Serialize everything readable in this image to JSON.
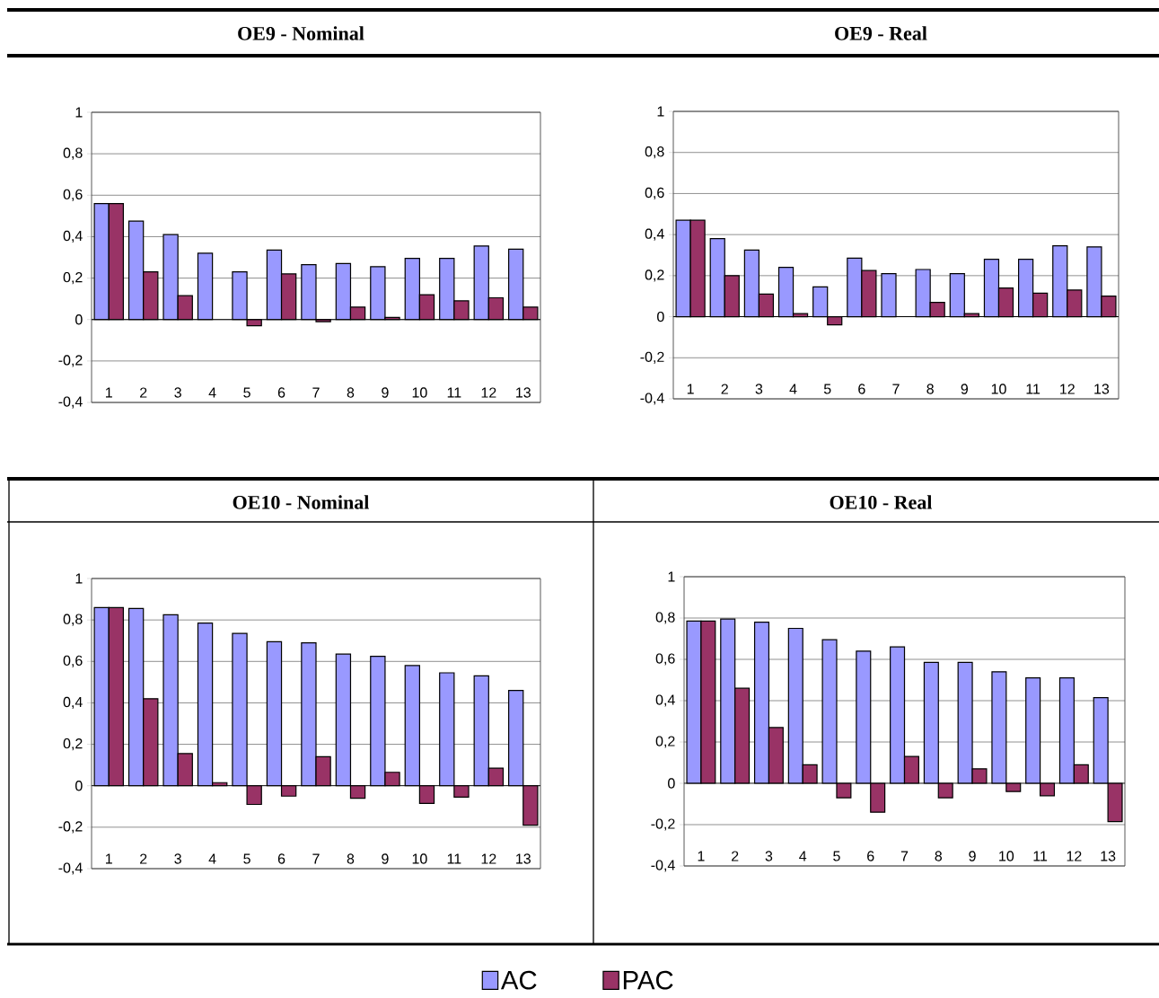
{
  "chart_data": [
    {
      "type": "bar",
      "title": "OE9 - Nominal",
      "categories": [
        "1",
        "2",
        "3",
        "4",
        "5",
        "6",
        "7",
        "8",
        "9",
        "10",
        "11",
        "12",
        "13"
      ],
      "series": [
        {
          "name": "AC",
          "color": "#9999ff",
          "values": [
            0.56,
            0.475,
            0.41,
            0.32,
            0.23,
            0.335,
            0.265,
            0.27,
            0.255,
            0.295,
            0.295,
            0.355,
            0.34
          ]
        },
        {
          "name": "PAC",
          "color": "#993366",
          "values": [
            0.56,
            0.23,
            0.115,
            null,
            -0.03,
            0.22,
            -0.01,
            0.06,
            0.01,
            0.12,
            0.09,
            0.105,
            0.06
          ]
        }
      ],
      "ylim": [
        -0.4,
        1
      ],
      "yticks": [
        {
          "value": -0.4,
          "label": "-0,4"
        },
        {
          "value": -0.2,
          "label": "-0,2"
        },
        0,
        {
          "value": 0.2,
          "label": "0,2"
        },
        {
          "value": 0.4,
          "label": "0,4"
        },
        {
          "value": 0.6,
          "label": "0,6"
        },
        {
          "value": 0.8,
          "label": "0,8"
        },
        1
      ],
      "grid": "y",
      "legend": "bottom"
    },
    {
      "type": "bar",
      "title": "OE9 - Real",
      "categories": [
        "1",
        "2",
        "3",
        "4",
        "5",
        "6",
        "7",
        "8",
        "9",
        "10",
        "11",
        "12",
        "13"
      ],
      "series": [
        {
          "color": "#9999ff",
          "values": [
            0.47,
            0.38,
            0.325,
            0.24,
            0.145,
            0.285,
            0.21,
            0.23,
            0.21,
            0.28,
            0.28,
            0.345,
            0.34
          ]
        },
        {
          "color": "#993366",
          "values": [
            0.47,
            0.2,
            0.11,
            0.015,
            -0.04,
            0.225,
            null,
            0.07,
            0.015,
            0.14,
            0.115,
            0.13,
            0.1
          ]
        }
      ],
      "ylim": [
        -0.4,
        1
      ],
      "yticks": [
        {
          "value": -0.4,
          "label": "-0,4"
        },
        {
          "value": -0.2,
          "label": "-0,2"
        },
        0,
        {
          "value": 0.2,
          "label": "0,2"
        },
        {
          "value": 0.4,
          "label": "0,4"
        },
        {
          "value": 0.6,
          "label": "0,6"
        },
        {
          "value": 0.8,
          "label": "0,8"
        },
        1
      ],
      "grid": "y"
    },
    {
      "type": "bar",
      "title": "OE10 - Nominal",
      "categories": [
        "1",
        "2",
        "3",
        "4",
        "5",
        "6",
        "7",
        "8",
        "9",
        "10",
        "11",
        "12",
        "13"
      ],
      "series": [
        {
          "color": "#9999ff",
          "values": [
            0.86,
            0.855,
            0.825,
            0.785,
            0.735,
            0.695,
            0.69,
            0.635,
            0.625,
            0.58,
            0.545,
            0.53,
            0.46
          ]
        },
        {
          "color": "#993366",
          "values": [
            0.86,
            0.42,
            0.155,
            0.015,
            -0.09,
            -0.05,
            0.14,
            -0.06,
            0.065,
            -0.085,
            -0.055,
            0.085,
            -0.19
          ]
        }
      ],
      "ylim": [
        -0.4,
        1
      ],
      "yticks": [
        {
          "value": -0.4,
          "label": "-0,4"
        },
        {
          "value": -0.2,
          "label": "-0,2"
        },
        0,
        {
          "value": 0.2,
          "label": "0,2"
        },
        {
          "value": 0.4,
          "label": "0,4"
        },
        {
          "value": 0.6,
          "label": "0,6"
        },
        {
          "value": 0.8,
          "label": "0,8"
        },
        1
      ],
      "grid": "y"
    },
    {
      "type": "bar",
      "title": "OE10 - Real",
      "categories": [
        "1",
        "2",
        "3",
        "4",
        "5",
        "6",
        "7",
        "8",
        "9",
        "10",
        "11",
        "12",
        "13"
      ],
      "series": [
        {
          "color": "#9999ff",
          "values": [
            0.785,
            0.795,
            0.78,
            0.75,
            0.695,
            0.64,
            0.66,
            0.585,
            0.585,
            0.54,
            0.51,
            0.51,
            0.415
          ]
        },
        {
          "color": "#993366",
          "values": [
            0.785,
            0.46,
            0.27,
            0.09,
            -0.07,
            -0.14,
            0.13,
            -0.07,
            0.07,
            -0.04,
            -0.06,
            0.09,
            -0.185
          ]
        }
      ],
      "ylim": [
        -0.4,
        1
      ],
      "yticks": [
        {
          "value": -0.4,
          "label": "-0,4"
        },
        {
          "value": -0.2,
          "label": "-0,2"
        },
        0,
        {
          "value": 0.2,
          "label": "0,2"
        },
        {
          "value": 0.4,
          "label": "0,4"
        },
        {
          "value": 0.6,
          "label": "0,6"
        },
        {
          "value": 0.8,
          "label": "0,8"
        },
        1
      ],
      "grid": "y"
    }
  ]
}
